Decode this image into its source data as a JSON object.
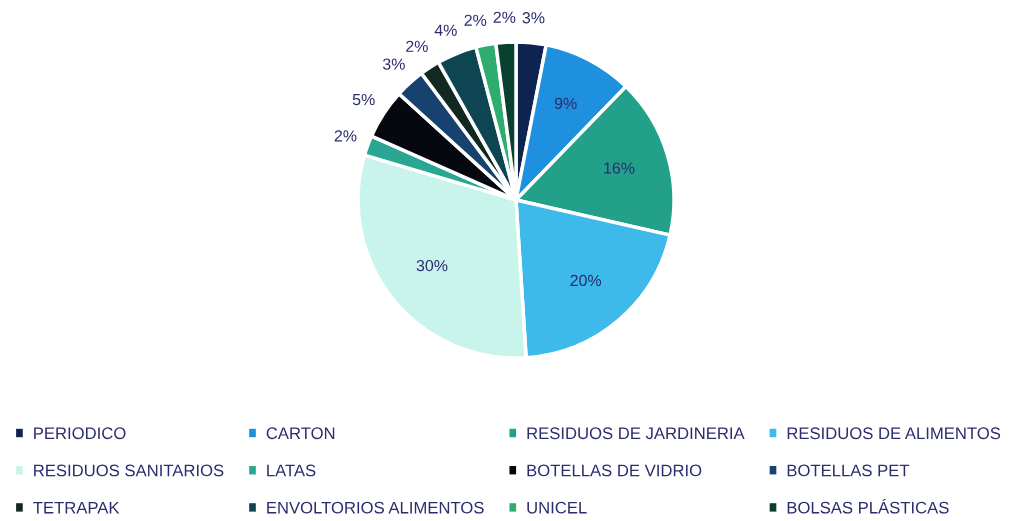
{
  "chart_data": {
    "type": "pie",
    "categories": [
      "PERIODICO",
      "CARTON",
      "RESIDUOS DE JARDINERIA",
      "RESIDUOS DE ALIMENTOS",
      "RESIDUOS SANITARIOS",
      "LATAS",
      "BOTELLAS DE VIDRIO",
      "BOTELLAS PET",
      "TETRAPAK",
      "ENVOLTORIOS ALIMENTOS",
      "UNICEL",
      "BOLSAS PLÁSTICAS"
    ],
    "values": [
      3,
      9,
      16,
      20,
      30,
      2,
      5,
      3,
      2,
      4,
      2,
      2
    ],
    "colors": [
      "#0e2450",
      "#1f8fdf",
      "#22a08a",
      "#3db9ea",
      "#c9f4ec",
      "#2aa793",
      "#05090f",
      "#174270",
      "#122822",
      "#0d4552",
      "#2fad6f",
      "#0a4030"
    ],
    "value_labels": [
      "3%",
      "9%",
      "16%",
      "20%",
      "30%",
      "2%",
      "5%",
      "3%",
      "2%",
      "4%",
      "2%",
      "2%"
    ],
    "legend": "bottom"
  }
}
